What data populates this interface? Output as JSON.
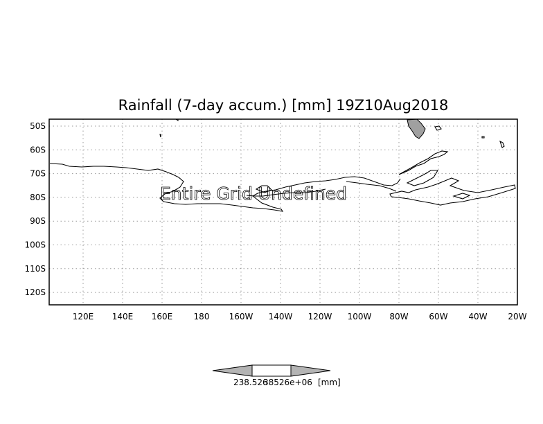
{
  "map": {
    "title": "Rainfall (7-day accum.) [mm] 19Z10Aug2018",
    "overlay_message": "Entire Grid Undefined",
    "lat_labels": [
      "50S",
      "60S",
      "70S",
      "80S",
      "90S",
      "100S",
      "110S",
      "120S"
    ],
    "lon_labels": [
      "120E",
      "140E",
      "160E",
      "180",
      "160W",
      "140W",
      "120W",
      "100W",
      "80W",
      "60W",
      "40W",
      "20W"
    ],
    "colors": {
      "land_fill": "#a0a0a0",
      "coastline": "#000000",
      "grid": "#9a9a9a",
      "legend_gray": "#b4b4b4"
    }
  },
  "legend": {
    "label_low": "238.526",
    "label_high": "38526e+06",
    "units": "[mm]"
  }
}
